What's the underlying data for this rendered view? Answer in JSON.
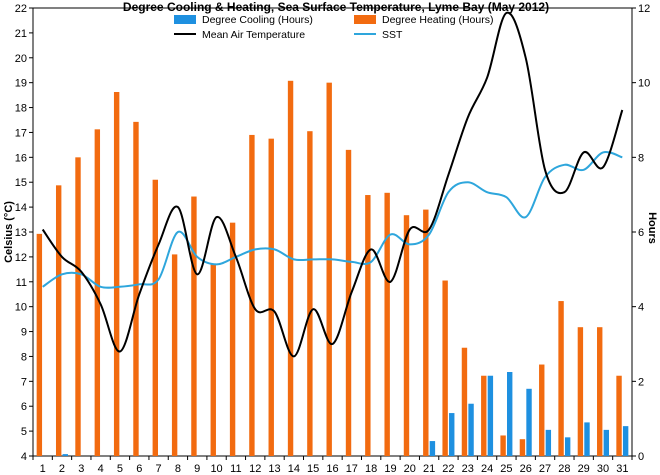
{
  "chart_data": {
    "type": "bar",
    "title": "Degree Cooling & Heating, Sea Surface Temperature, Lyme Bay (May 2012)",
    "ylabel_left": "Celsius (°C)",
    "ylabel_right": "Hours",
    "ylim_left": [
      4,
      22
    ],
    "ylim_right": [
      0,
      12
    ],
    "yticks_left": [
      4,
      5,
      6,
      7,
      8,
      9,
      10,
      11,
      12,
      13,
      14,
      15,
      16,
      17,
      18,
      19,
      20,
      21,
      22
    ],
    "yticks_right": [
      0,
      2,
      4,
      6,
      8,
      10,
      12
    ],
    "categories": [
      "1",
      "2",
      "3",
      "4",
      "5",
      "6",
      "7",
      "8",
      "9",
      "10",
      "11",
      "12",
      "13",
      "14",
      "15",
      "16",
      "17",
      "18",
      "19",
      "20",
      "21",
      "22",
      "23",
      "24",
      "25",
      "26",
      "27",
      "28",
      "29",
      "30",
      "31"
    ],
    "legend": {
      "cooling": "Degree Cooling (Hours)",
      "heating": "Degree Heating (Hours)",
      "air": "Mean Air Temperature",
      "sst": "SST"
    },
    "colors": {
      "cooling": "#1e90e0",
      "heating": "#f26b10",
      "air": "#000000",
      "sst": "#2ea6dc"
    },
    "series": [
      {
        "name": "Degree Cooling (Hours)",
        "axis": "right",
        "kind": "bar",
        "values": [
          0,
          0.05,
          0,
          0,
          0,
          0,
          0,
          0,
          0,
          0,
          0,
          0,
          0,
          0,
          0,
          0,
          0,
          0,
          0,
          0,
          0.4,
          1.15,
          1.4,
          2.15,
          2.25,
          1.8,
          0.7,
          0.5,
          0.9,
          0.7,
          0.8
        ]
      },
      {
        "name": "Degree Heating (Hours)",
        "axis": "right",
        "kind": "bar",
        "values": [
          5.95,
          7.25,
          8.0,
          8.75,
          9.75,
          8.95,
          7.4,
          5.4,
          6.95,
          5.15,
          6.25,
          8.6,
          8.5,
          10.05,
          8.7,
          10.0,
          8.2,
          6.99,
          7.05,
          6.45,
          6.6,
          4.7,
          2.9,
          2.15,
          0.55,
          0.45,
          2.45,
          4.15,
          3.45,
          3.45,
          2.15
        ]
      },
      {
        "name": "Mean Air Temperature",
        "axis": "left",
        "kind": "line",
        "values": [
          13.1,
          12.0,
          11.4,
          10.1,
          8.2,
          10.5,
          12.5,
          14.0,
          11.3,
          13.6,
          12.0,
          9.9,
          9.8,
          8.0,
          9.9,
          8.5,
          10.6,
          12.3,
          11.0,
          13.1,
          13.1,
          15.3,
          17.6,
          19.2,
          21.8,
          20.0,
          15.5,
          14.6,
          16.2,
          15.6,
          17.9
        ]
      },
      {
        "name": "SST",
        "axis": "left",
        "kind": "line",
        "values": [
          10.8,
          11.3,
          11.3,
          10.8,
          10.8,
          10.9,
          11.1,
          13.0,
          12.0,
          11.7,
          12.0,
          12.3,
          12.3,
          11.9,
          11.9,
          11.9,
          11.8,
          11.8,
          12.9,
          12.5,
          12.9,
          14.6,
          15.0,
          14.6,
          14.4,
          13.6,
          15.2,
          15.7,
          15.5,
          16.2,
          16.0
        ]
      }
    ]
  }
}
